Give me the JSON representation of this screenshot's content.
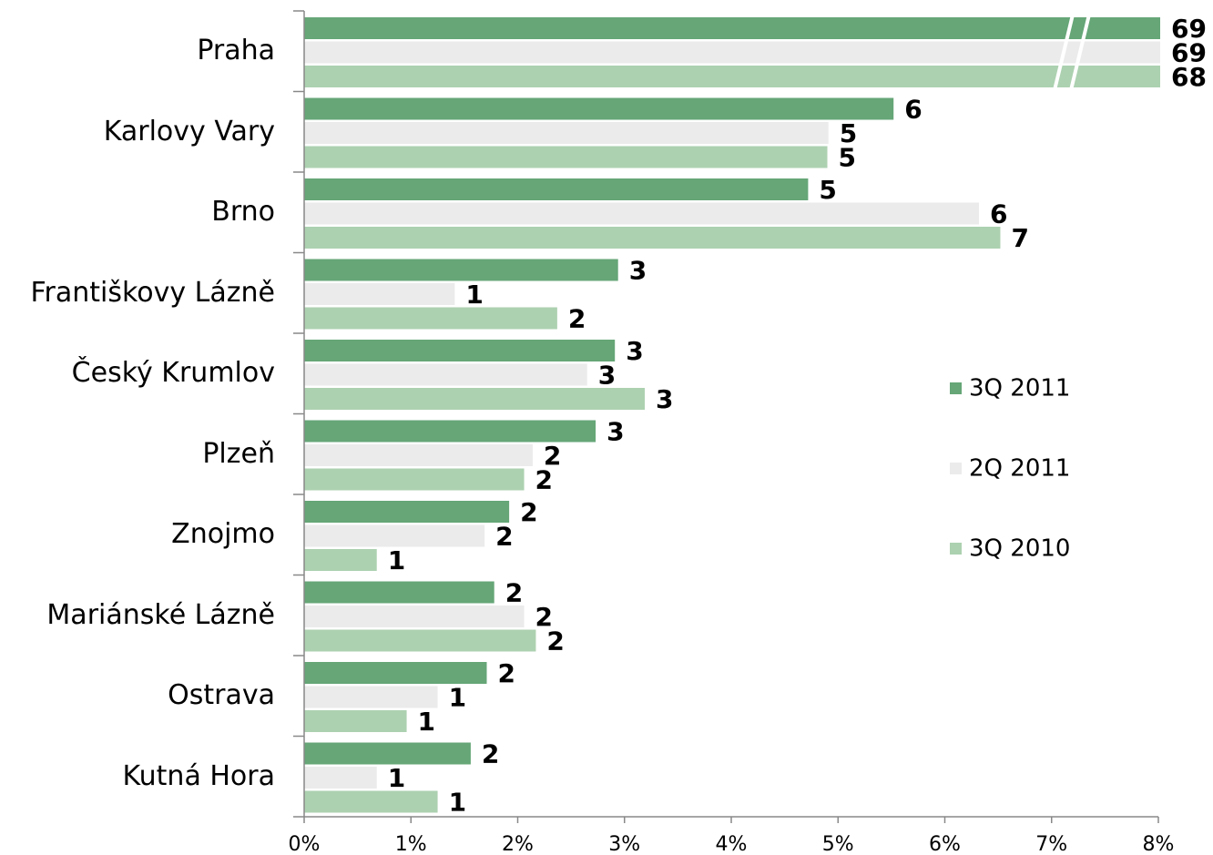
{
  "chart_data": {
    "type": "bar",
    "orientation": "horizontal",
    "categories": [
      "Praha",
      "Karlovy Vary",
      "Brno",
      "Františkovy Lázně",
      "Český Krumlov",
      "Plzeň",
      "Znojmo",
      "Mariánské Lázně",
      "Ostrava",
      "Kutná Hora"
    ],
    "series": [
      {
        "name": "3Q 2011",
        "color": "#66a677",
        "values": [
          69,
          5.52,
          4.72,
          2.94,
          2.91,
          2.73,
          1.92,
          1.78,
          1.71,
          1.56
        ],
        "value_labels": [
          "69",
          "6",
          "5",
          "3",
          "3",
          "3",
          "2",
          "2",
          "2",
          "2"
        ]
      },
      {
        "name": "2Q 2011",
        "color": "#ebebeb",
        "values": [
          69,
          4.91,
          6.32,
          1.41,
          2.65,
          2.14,
          1.69,
          2.06,
          1.25,
          0.68
        ],
        "value_labels": [
          "69",
          "5",
          "6",
          "1",
          "3",
          "2",
          "2",
          "2",
          "1",
          "1"
        ]
      },
      {
        "name": "3Q 2010",
        "color": "#acd1b0",
        "values": [
          68,
          4.9,
          6.52,
          2.37,
          3.19,
          2.06,
          0.68,
          2.17,
          0.96,
          1.25
        ],
        "value_labels": [
          "68",
          "5",
          "7",
          "2",
          "3",
          "2",
          "1",
          "2",
          "1",
          "1"
        ]
      }
    ],
    "xlim": [
      0,
      8
    ],
    "xticks": [
      {
        "value": 0,
        "label": "0%"
      },
      {
        "value": 1,
        "label": "1%"
      },
      {
        "value": 2,
        "label": "2%"
      },
      {
        "value": 3,
        "label": "3%"
      },
      {
        "value": 4,
        "label": "4%"
      },
      {
        "value": 5,
        "label": "5%"
      },
      {
        "value": 6,
        "label": "6%"
      },
      {
        "value": 7,
        "label": "7%"
      },
      {
        "value": 8,
        "label": "8%"
      }
    ],
    "axis_break": true,
    "legend": "right",
    "grid": false
  }
}
